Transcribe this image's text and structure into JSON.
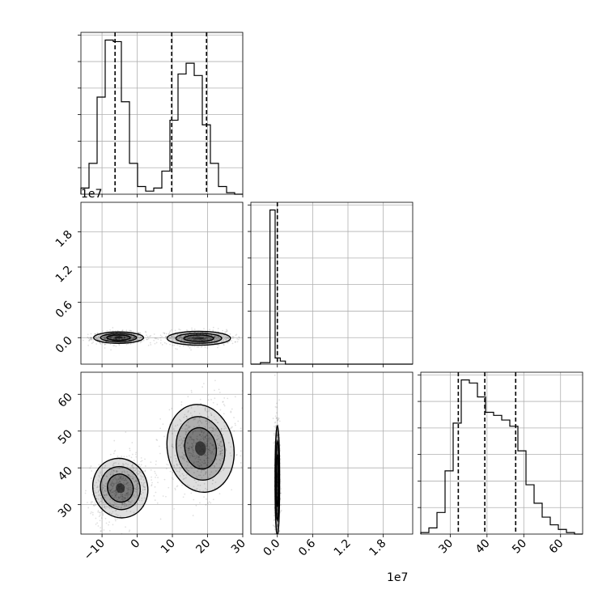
{
  "chart_data": {
    "type": "corner",
    "parameters": [
      {
        "name": "",
        "range": [
          -16,
          30
        ],
        "ticks": [
          -10,
          0,
          10,
          20,
          30
        ],
        "tick_labels": [
          "−10",
          "0",
          "10",
          "20",
          "30"
        ]
      },
      {
        "name": "",
        "range": [
          -0.45,
          2.3
        ],
        "ticks": [
          0.0,
          0.6,
          1.2,
          1.8
        ],
        "tick_labels": [
          "0.0",
          "0.6",
          "1.2",
          "1.8"
        ],
        "offset_text": "1e7"
      },
      {
        "name": "",
        "range": [
          22,
          66
        ],
        "ticks": [
          30,
          40,
          50,
          60
        ],
        "tick_labels": [
          "30",
          "40",
          "50",
          "60"
        ]
      }
    ],
    "diagonal": [
      {
        "param": 0,
        "bin_edges": [
          -16,
          -13.7,
          -11.4,
          -9.1,
          -6.8,
          -4.5,
          -2.2,
          0.1,
          2.4,
          4.7,
          7.0,
          9.3,
          11.6,
          13.9,
          16.2,
          18.5,
          20.8,
          23.1,
          25.4,
          27.7,
          30
        ],
        "counts": [
          0.04,
          0.2,
          0.63,
          1.0,
          0.99,
          0.6,
          0.2,
          0.05,
          0.02,
          0.04,
          0.15,
          0.48,
          0.78,
          0.85,
          0.77,
          0.45,
          0.2,
          0.05,
          0.01,
          0.0
        ],
        "quantiles": [
          -6.3,
          9.8,
          19.7
        ]
      },
      {
        "param": 1,
        "bin_edges": [
          -0.45,
          -0.2875,
          -0.125,
          -0.0375,
          0.05,
          0.1375,
          0.3,
          0.5,
          2.3
        ],
        "counts": [
          0.0,
          0.01,
          1.0,
          0.04,
          0.02,
          0.0,
          0.0,
          0.0
        ],
        "quantiles": [
          0.0
        ]
      },
      {
        "param": 2,
        "bin_edges": [
          22,
          24.2,
          26.4,
          28.6,
          30.8,
          33.0,
          35.2,
          37.4,
          39.6,
          41.8,
          44.0,
          46.2,
          48.4,
          50.6,
          52.8,
          55.0,
          57.2,
          59.4,
          61.6,
          63.8,
          66
        ],
        "counts": [
          0.01,
          0.04,
          0.14,
          0.41,
          0.72,
          1.0,
          0.98,
          0.89,
          0.79,
          0.77,
          0.74,
          0.7,
          0.54,
          0.32,
          0.2,
          0.11,
          0.06,
          0.03,
          0.01,
          0.0
        ],
        "quantiles": [
          32.2,
          39.4,
          47.8
        ]
      }
    ],
    "joint": [
      {
        "x_param": 0,
        "y_param": 1,
        "modes": [
          {
            "cx": -5.3,
            "cy": -0.0,
            "sx": 3.3,
            "sy": 0.045,
            "rho": 0.0,
            "n": 700
          },
          {
            "cx": 17.5,
            "cy": -0.01,
            "sx": 4.2,
            "sy": 0.055,
            "rho": 0.0,
            "n": 650
          }
        ]
      },
      {
        "x_param": 1,
        "y_param": 2,
        "modes": [
          {
            "cx": 0.0,
            "cy": 36.5,
            "sx": 0.018,
            "sy": 7.0,
            "rho": 0.0,
            "n": 900
          }
        ]
      },
      {
        "x_param": 0,
        "y_param": 2,
        "modes": [
          {
            "cx": -4.8,
            "cy": 34.5,
            "sx": 3.6,
            "sy": 3.8,
            "rho": 0.35,
            "n": 650
          },
          {
            "cx": 18.0,
            "cy": 45.3,
            "sx": 4.4,
            "sy": 5.6,
            "rho": 0.15,
            "n": 650
          }
        ]
      }
    ],
    "grid": true,
    "contour_levels": [
      0.4,
      0.7,
      0.9
    ]
  },
  "colors": {
    "points": "#000000",
    "density": "#000000",
    "grid": "#b0b0b0",
    "frame": "#000000"
  }
}
